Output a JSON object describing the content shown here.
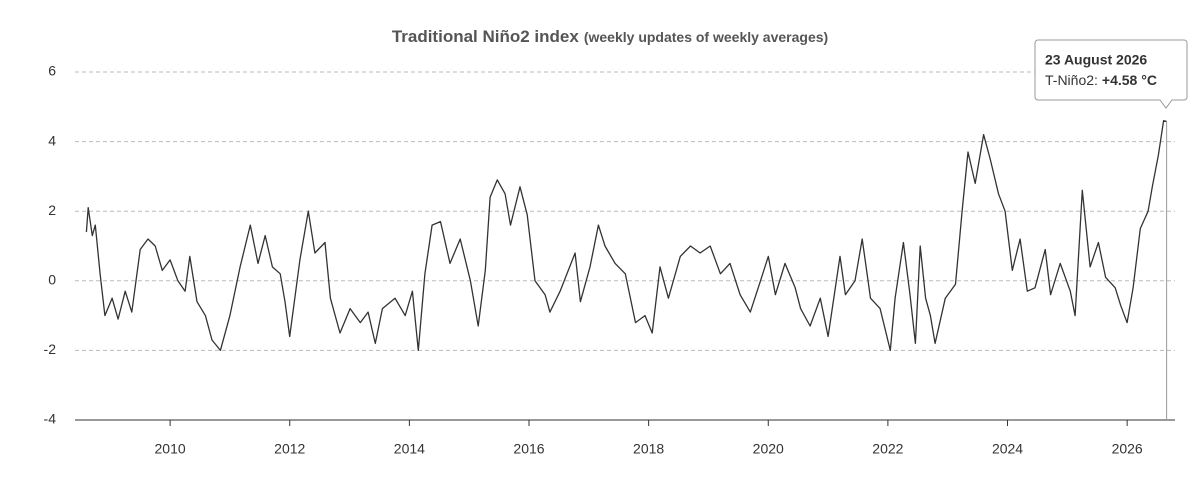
{
  "chart_data": {
    "type": "line",
    "title": "Traditional Niño2 index",
    "subtitle": "(weekly updates of weekly averages)",
    "xlim": [
      2008.41,
      2026.8
    ],
    "xticks": [
      2010,
      2012,
      2014,
      2016,
      2018,
      2020,
      2022,
      2024,
      2026
    ],
    "ylim": [
      -4,
      6
    ],
    "yticks": [
      -4,
      -2,
      0,
      2,
      4,
      6
    ],
    "grid": true,
    "series": [
      {
        "name": "T-Niño2",
        "color": "#333333",
        "x": [
          2008.6,
          2008.63,
          2008.7,
          2008.75,
          2008.83,
          2008.91,
          2009.03,
          2009.13,
          2009.25,
          2009.36,
          2009.5,
          2009.63,
          2009.75,
          2009.87,
          2010.0,
          2010.13,
          2010.25,
          2010.33,
          2010.45,
          2010.59,
          2010.7,
          2010.84,
          2011.0,
          2011.17,
          2011.34,
          2011.47,
          2011.59,
          2011.71,
          2011.84,
          2011.92,
          2012.0,
          2012.17,
          2012.31,
          2012.42,
          2012.59,
          2012.68,
          2012.84,
          2013.01,
          2013.18,
          2013.31,
          2013.43,
          2013.55,
          2013.76,
          2013.93,
          2014.05,
          2014.15,
          2014.26,
          2014.38,
          2014.52,
          2014.68,
          2014.85,
          2015.02,
          2015.15,
          2015.27,
          2015.35,
          2015.47,
          2015.6,
          2015.69,
          2015.85,
          2015.97,
          2016.1,
          2016.27,
          2016.35,
          2016.52,
          2016.77,
          2016.86,
          2017.02,
          2017.16,
          2017.27,
          2017.44,
          2017.61,
          2017.78,
          2017.94,
          2018.06,
          2018.19,
          2018.33,
          2018.53,
          2018.7,
          2018.86,
          2019.03,
          2019.2,
          2019.36,
          2019.53,
          2019.7,
          2019.87,
          2020.0,
          2020.12,
          2020.28,
          2020.45,
          2020.54,
          2020.7,
          2020.87,
          2021.0,
          2021.2,
          2021.29,
          2021.45,
          2021.57,
          2021.71,
          2021.87,
          2022.04,
          2022.12,
          2022.26,
          2022.37,
          2022.46,
          2022.54,
          2022.63,
          2022.71,
          2022.79,
          2022.96,
          2023.13,
          2023.24,
          2023.34,
          2023.46,
          2023.6,
          2023.71,
          2023.85,
          2023.96,
          2024.08,
          2024.21,
          2024.33,
          2024.46,
          2024.63,
          2024.72,
          2024.88,
          2025.05,
          2025.13,
          2025.25,
          2025.38,
          2025.52,
          2025.64,
          2025.8,
          2025.89,
          2026.0,
          2026.1,
          2026.22,
          2026.35,
          2026.42,
          2026.52,
          2026.61,
          2026.66
        ],
        "values": [
          1.4,
          2.1,
          1.3,
          1.6,
          0.2,
          -1.0,
          -0.5,
          -1.1,
          -0.3,
          -0.9,
          0.9,
          1.2,
          1.0,
          0.3,
          0.6,
          0.0,
          -0.3,
          0.7,
          -0.6,
          -1.0,
          -1.7,
          -2.0,
          -1.0,
          0.4,
          1.6,
          0.5,
          1.3,
          0.4,
          0.2,
          -0.6,
          -1.6,
          0.6,
          2.0,
          0.8,
          1.1,
          -0.5,
          -1.5,
          -0.8,
          -1.2,
          -0.9,
          -1.8,
          -0.8,
          -0.5,
          -1.0,
          -0.3,
          -2.0,
          0.2,
          1.6,
          1.7,
          0.5,
          1.2,
          0.0,
          -1.3,
          0.3,
          2.4,
          2.9,
          2.5,
          1.6,
          2.7,
          1.9,
          0.0,
          -0.4,
          -0.9,
          -0.3,
          0.8,
          -0.6,
          0.4,
          1.6,
          1.0,
          0.5,
          0.2,
          -1.2,
          -1.0,
          -1.5,
          0.4,
          -0.5,
          0.7,
          1.0,
          0.8,
          1.0,
          0.2,
          0.5,
          -0.4,
          -0.9,
          0.0,
          0.7,
          -0.4,
          0.5,
          -0.2,
          -0.8,
          -1.3,
          -0.5,
          -1.6,
          0.7,
          -0.4,
          0.0,
          1.2,
          -0.5,
          -0.8,
          -2.0,
          -0.5,
          1.1,
          -0.4,
          -1.8,
          1.0,
          -0.5,
          -1.0,
          -1.8,
          -0.5,
          -0.1,
          2.0,
          3.7,
          2.8,
          4.2,
          3.5,
          2.5,
          2.0,
          0.3,
          1.2,
          -0.3,
          -0.2,
          0.9,
          -0.4,
          0.5,
          -0.3,
          -1.0,
          2.6,
          0.4,
          1.1,
          0.1,
          -0.2,
          -0.7,
          -1.2,
          -0.2,
          1.5,
          2.0,
          2.7,
          3.6,
          4.6,
          4.58
        ]
      }
    ],
    "tooltip": {
      "title": "23 August 2026",
      "label": "T-Niño2:",
      "value": {
        "value": 4.58,
        "label": "+4.58 °C"
      }
    }
  }
}
